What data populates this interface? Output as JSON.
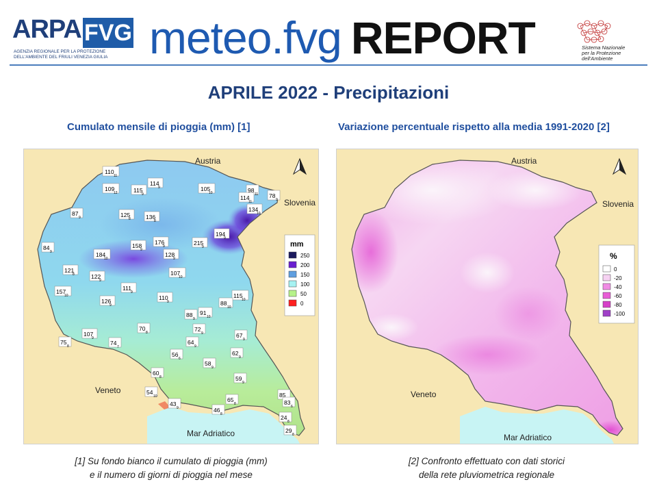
{
  "header": {
    "arpa_word": "ARPA",
    "fvg_word": "FVG",
    "arpa_subtitle": "agenzia regionale per la protezione dell'ambiente del friuli venezia giulia",
    "title_meteo": "meteo.fvg",
    "title_report": "REPORT",
    "snpa_text": "Sistema Nazionale per la Protezione dell'Ambiente"
  },
  "page_title": "APRILE 2022 - Precipitazioni",
  "left_panel": {
    "subtitle": "Cumulato mensile di pioggia (mm) [1]",
    "caption_line1": "[1] Su fondo bianco il cumulato di pioggia (mm)",
    "caption_line2": "e il numero di giorni di pioggia nel mese",
    "labels": {
      "austria": "Austria",
      "slovenia": "Slovenia",
      "veneto": "Veneto",
      "mar": "Mar Adriatico"
    },
    "legend": {
      "title": "mm",
      "items": [
        {
          "label": "250",
          "color": "#1b1a5e"
        },
        {
          "label": "200",
          "color": "#6a1fd0"
        },
        {
          "label": "150",
          "color": "#5f9fe0"
        },
        {
          "label": "100",
          "color": "#a6f2f2"
        },
        {
          "label": "50",
          "color": "#b6f28a"
        },
        {
          "label": "0",
          "color": "#ff2020"
        }
      ]
    },
    "stations": [
      {
        "v": "110",
        "d": "11"
      },
      {
        "v": "109",
        "d": "12"
      },
      {
        "v": "115",
        "d": "9"
      },
      {
        "v": "114",
        "d": "9"
      },
      {
        "v": "105",
        "d": "10"
      },
      {
        "v": "98",
        "d": "11"
      },
      {
        "v": "114",
        "d": "11"
      },
      {
        "v": "78",
        "d": "9"
      },
      {
        "v": "134",
        "d": "10"
      },
      {
        "v": "87",
        "d": "9"
      },
      {
        "v": "125",
        "d": "8"
      },
      {
        "v": "136",
        "d": "8"
      },
      {
        "v": "194",
        "d": "9"
      },
      {
        "v": "84",
        "d": "9"
      },
      {
        "v": "176",
        "d": "9"
      },
      {
        "v": "158",
        "d": "9"
      },
      {
        "v": "215",
        "d": "9"
      },
      {
        "v": "184",
        "d": "10"
      },
      {
        "v": "128",
        "d": "9"
      },
      {
        "v": "121",
        "d": "8"
      },
      {
        "v": "122",
        "d": "9"
      },
      {
        "v": "107",
        "d": "10"
      },
      {
        "v": "111",
        "d": "9"
      },
      {
        "v": "157",
        "d": "10"
      },
      {
        "v": "110",
        "d": "9"
      },
      {
        "v": "115",
        "d": "10"
      },
      {
        "v": "126",
        "d": "9"
      },
      {
        "v": "88",
        "d": "10"
      },
      {
        "v": "88",
        "d": "9"
      },
      {
        "v": "91",
        "d": "10"
      },
      {
        "v": "70",
        "d": "8"
      },
      {
        "v": "72",
        "d": "9"
      },
      {
        "v": "107",
        "d": "9"
      },
      {
        "v": "67",
        "d": "9"
      },
      {
        "v": "75",
        "d": "8"
      },
      {
        "v": "74",
        "d": "7"
      },
      {
        "v": "64",
        "d": "9"
      },
      {
        "v": "56",
        "d": "6"
      },
      {
        "v": "62",
        "d": "9"
      },
      {
        "v": "58",
        "d": "9"
      },
      {
        "v": "60",
        "d": "8"
      },
      {
        "v": "59",
        "d": "9"
      },
      {
        "v": "54",
        "d": "10"
      },
      {
        "v": "85",
        "d": "9"
      },
      {
        "v": "43",
        "d": "9"
      },
      {
        "v": "65",
        "d": "8"
      },
      {
        "v": "83",
        "d": "6"
      },
      {
        "v": "46",
        "d": "8"
      },
      {
        "v": "24",
        "d": "8"
      },
      {
        "v": "29",
        "d": "8"
      }
    ]
  },
  "right_panel": {
    "subtitle": "Variazione percentuale rispetto alla media 1991-2020 [2]",
    "caption_line1": "[2] Confronto  effettuato con dati storici",
    "caption_line2": "della rete pluviometrica regionale",
    "labels": {
      "austria": "Austria",
      "slovenia": "Slovenia",
      "veneto": "Veneto",
      "mar": "Mar Adriatico"
    },
    "legend": {
      "title": "%",
      "items": [
        {
          "label": "0",
          "color": "#ffffff"
        },
        {
          "label": "-20",
          "color": "#f6d2f2"
        },
        {
          "label": "-40",
          "color": "#f08ce4"
        },
        {
          "label": "-60",
          "color": "#e85ed6"
        },
        {
          "label": "-80",
          "color": "#d640c8"
        },
        {
          "label": "-100",
          "color": "#a040c8"
        }
      ]
    }
  }
}
